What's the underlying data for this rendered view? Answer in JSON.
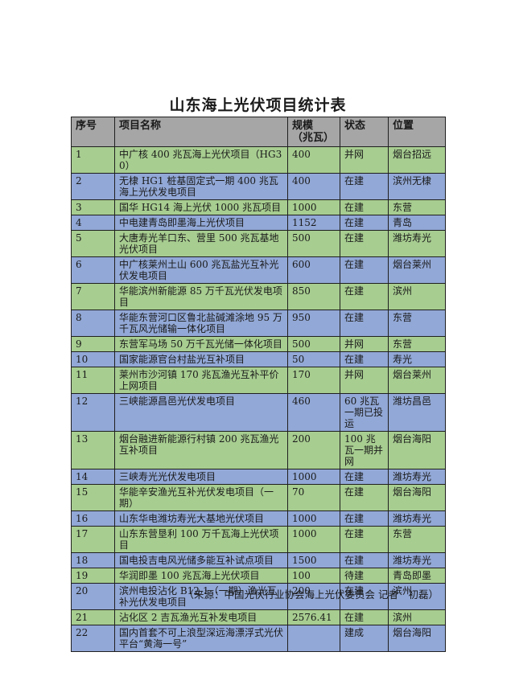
{
  "page": {
    "title": "山东海上光伏项目统计表",
    "source_note": "（来源：中国光伏行业协会海上光伏委员会 记者　初磊）"
  },
  "colors": {
    "header_bg": "#a6a6a6",
    "row_green": "#a7cd90",
    "row_blue": "#92a8d6",
    "border": "#1f1f1f",
    "text": "#1a1a1a"
  },
  "table": {
    "columns": [
      "序号",
      "项目名称",
      "规模\n（兆瓦）",
      "状态",
      "位置"
    ],
    "column_keys": [
      "no",
      "name",
      "scale",
      "status",
      "location"
    ],
    "rows": [
      {
        "no": "1",
        "name": "中广核 400 兆瓦海上光伏项目（HG30）",
        "scale": "400",
        "status": "并网",
        "location": "烟台招远"
      },
      {
        "no": "2",
        "name": "无棣 HG1 桩基固定式一期 400 兆瓦海上光伏发电项目",
        "scale": "400",
        "status": "在建",
        "location": "滨州无棣"
      },
      {
        "no": "3",
        "name": "国华 HG14 海上光伏 1000 兆瓦项目",
        "scale": "1000",
        "status": "在建",
        "location": "东营"
      },
      {
        "no": "4",
        "name": "中电建青岛即墨海上光伏项目",
        "scale": "1152",
        "status": "在建",
        "location": "青岛"
      },
      {
        "no": "5",
        "name": "大唐寿光羊口东、营里 500 兆瓦基地光伏项目",
        "scale": "500",
        "status": "在建",
        "location": "潍坊寿光"
      },
      {
        "no": "6",
        "name": "中广核莱州土山 600 兆瓦盐光互补光伏发电项目",
        "scale": "600",
        "status": "在建",
        "location": "烟台莱州"
      },
      {
        "no": "7",
        "name": "华能滨州新能源 85 万千瓦光伏发电项目",
        "scale": "850",
        "status": "在建",
        "location": "滨州"
      },
      {
        "no": "8",
        "name": "华能东营河口区鲁北盐碱滩涂地 95 万千瓦风光储输一体化项目",
        "scale": "950",
        "status": "在建",
        "location": "东营"
      },
      {
        "no": "9",
        "name": "东营军马场 50 万千瓦光储一体化项目",
        "scale": "500",
        "status": "并网",
        "location": "东营"
      },
      {
        "no": "10",
        "name": "国家能源官台村盐光互补项目",
        "scale": "50",
        "status": "在建",
        "location": "寿光"
      },
      {
        "no": "11",
        "name": "莱州市沙河镇 170 兆瓦渔光互补平价上网项目",
        "scale": "170",
        "status": "并网",
        "location": "烟台莱州"
      },
      {
        "no": "12",
        "name": "三峡能源昌邑光伏发电项目",
        "scale": "460",
        "status": "60 兆瓦一期已投运",
        "location": "潍坊昌邑"
      },
      {
        "no": "13",
        "name": "烟台融进新能源行村镇 200 兆瓦渔光互补项目",
        "scale": "200",
        "status": "100 兆瓦一期并网",
        "location": "烟台海阳"
      },
      {
        "no": "14",
        "name": "三峡寿光光伏发电项目",
        "scale": "1000",
        "status": "在建",
        "location": "潍坊寿光"
      },
      {
        "no": "15",
        "name": "华能辛安渔光互补光伏发电项目（一期）",
        "scale": "70",
        "status": "在建",
        "location": "烟台海阳"
      },
      {
        "no": "16",
        "name": "山东华电潍坊寿光大基地光伏项目",
        "scale": "1000",
        "status": "在建",
        "location": "潍坊寿光"
      },
      {
        "no": "17",
        "name": "山东东营垦利 100 万千瓦海上光伏项目",
        "scale": "1000",
        "status": "在建",
        "location": "东营"
      },
      {
        "no": "18",
        "name": "国电投吉电风光储多能互补试点项目",
        "scale": "1500",
        "status": "在建",
        "location": "潍坊寿光"
      },
      {
        "no": "19",
        "name": "华润即墨 100 兆瓦海上光伏项目",
        "scale": "100",
        "status": "待建",
        "location": "青岛即墨"
      },
      {
        "no": "20",
        "name": "滨州电投沾化 B12-1（一期）渔光互补光伏发电项目",
        "scale": "200",
        "status": "在建",
        "location": "滨州"
      },
      {
        "no": "21",
        "name": "沾化区 2 吉瓦渔光互补发电项目",
        "scale": "2576.41",
        "status": "在建",
        "location": "滨州"
      },
      {
        "no": "22",
        "name": "国内首套不可上浪型深远海漂浮式光伏平台“黄海一号”",
        "scale": "",
        "status": "建成",
        "location": "烟台海阳"
      }
    ]
  }
}
